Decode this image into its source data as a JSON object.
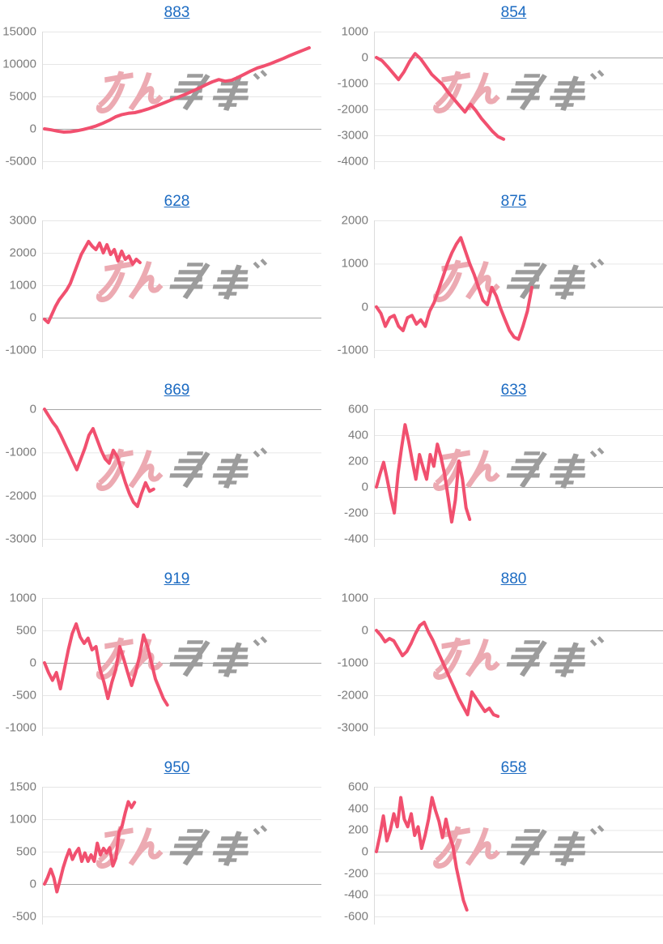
{
  "page": {
    "background": "#ffffff"
  },
  "style": {
    "line_color": "#f1506f",
    "grid_color": "#e6e6e6",
    "zero_line_color": "#a6a6a6",
    "axis_line_color": "#dcdcdc",
    "tick_label_color": "#7b7b7b",
    "title_link_color": "#1c6bc2",
    "watermark_pink": "#ecaab2",
    "watermark_gray": "#9c9c9c"
  },
  "watermark": {
    "name": "minrepo-logo",
    "text": "みんレポ"
  },
  "chart_data": [
    {
      "id": "883",
      "type": "line",
      "title": "883",
      "legend": "none",
      "grid": true,
      "yticks": [
        15000,
        10000,
        5000,
        0,
        -5000
      ],
      "ylim": [
        -5000,
        15000
      ],
      "x_end_fraction": 0.97,
      "values": [
        0,
        -150,
        -350,
        -500,
        -450,
        -300,
        -100,
        150,
        450,
        850,
        1300,
        1850,
        2200,
        2400,
        2500,
        2750,
        3050,
        3400,
        3800,
        4200,
        4600,
        5000,
        5400,
        5850,
        6300,
        6800,
        7250,
        7600,
        7350,
        7500,
        7950,
        8450,
        8950,
        9400,
        9700,
        10050,
        10450,
        10850,
        11300,
        11700,
        12100,
        12500
      ]
    },
    {
      "id": "854",
      "type": "line",
      "title": "854",
      "legend": "none",
      "grid": true,
      "yticks": [
        1000,
        0,
        -1000,
        -2000,
        -3000,
        -4000
      ],
      "ylim": [
        -4000,
        1000
      ],
      "x_end_fraction": 0.45,
      "values": [
        0,
        -120,
        -350,
        -600,
        -850,
        -550,
        -150,
        150,
        -50,
        -350,
        -650,
        -850,
        -1050,
        -1350,
        -1600,
        -1850,
        -2100,
        -1800,
        -2050,
        -2350,
        -2600,
        -2850,
        -3050,
        -3150
      ]
    },
    {
      "id": "628",
      "type": "line",
      "title": "628",
      "legend": "none",
      "grid": true,
      "yticks": [
        3000,
        2000,
        1000,
        0,
        -1000
      ],
      "ylim": [
        -1000,
        3000
      ],
      "x_end_fraction": 0.35,
      "values": [
        -50,
        -150,
        100,
        350,
        550,
        700,
        850,
        1050,
        1350,
        1650,
        1950,
        2150,
        2350,
        2200,
        2100,
        2300,
        2000,
        2250,
        1950,
        2100,
        1750,
        2050,
        1800,
        1900,
        1650,
        1800,
        1700
      ]
    },
    {
      "id": "875",
      "type": "line",
      "title": "875",
      "legend": "none",
      "grid": true,
      "yticks": [
        2000,
        1000,
        0,
        -1000
      ],
      "ylim": [
        -1000,
        2000
      ],
      "x_end_fraction": 0.55,
      "values": [
        0,
        -150,
        -450,
        -250,
        -200,
        -450,
        -550,
        -250,
        -200,
        -400,
        -300,
        -450,
        -100,
        100,
        400,
        700,
        1000,
        1250,
        1450,
        1600,
        1300,
        1000,
        750,
        450,
        150,
        50,
        450,
        250,
        -50,
        -300,
        -550,
        -700,
        -750,
        -450,
        -100,
        450
      ]
    },
    {
      "id": "869",
      "type": "line",
      "title": "869",
      "legend": "none",
      "grid": true,
      "yticks": [
        0,
        -1000,
        -2000,
        -3000
      ],
      "ylim": [
        -3000,
        0
      ],
      "x_end_fraction": 0.4,
      "values": [
        0,
        -150,
        -300,
        -420,
        -600,
        -800,
        -1000,
        -1200,
        -1400,
        -1150,
        -900,
        -600,
        -450,
        -700,
        -950,
        -1150,
        -1250,
        -950,
        -1100,
        -1400,
        -1700,
        -1950,
        -2150,
        -2250,
        -1950,
        -1700,
        -1900,
        -1850
      ]
    },
    {
      "id": "633",
      "type": "line",
      "title": "633",
      "legend": "none",
      "grid": true,
      "yticks": [
        600,
        400,
        200,
        0,
        -200,
        -400
      ],
      "ylim": [
        -400,
        600
      ],
      "x_end_fraction": 0.33,
      "values": [
        0,
        100,
        190,
        60,
        -80,
        -200,
        100,
        300,
        480,
        350,
        200,
        60,
        250,
        150,
        60,
        250,
        160,
        330,
        230,
        100,
        -80,
        -270,
        -100,
        200,
        60,
        -160,
        -250
      ]
    },
    {
      "id": "919",
      "type": "line",
      "title": "919",
      "legend": "none",
      "grid": true,
      "yticks": [
        1000,
        500,
        0,
        -500,
        -1000
      ],
      "ylim": [
        -1000,
        1000
      ],
      "x_end_fraction": 0.45,
      "values": [
        0,
        -150,
        -270,
        -150,
        -400,
        -100,
        200,
        450,
        600,
        400,
        300,
        380,
        200,
        250,
        -100,
        -300,
        -550,
        -300,
        -100,
        250,
        60,
        -150,
        -350,
        -150,
        100,
        430,
        250,
        0,
        -250,
        -400,
        -550,
        -650
      ]
    },
    {
      "id": "880",
      "type": "line",
      "title": "880",
      "legend": "none",
      "grid": true,
      "yticks": [
        1000,
        0,
        -1000,
        -2000,
        -3000
      ],
      "ylim": [
        -3000,
        1000
      ],
      "x_end_fraction": 0.43,
      "values": [
        0,
        -150,
        -350,
        -250,
        -320,
        -550,
        -780,
        -650,
        -400,
        -100,
        150,
        250,
        -50,
        -300,
        -600,
        -900,
        -1200,
        -1500,
        -1800,
        -2100,
        -2350,
        -2600,
        -1900,
        -2100,
        -2300,
        -2500,
        -2400,
        -2600,
        -2650
      ]
    },
    {
      "id": "950",
      "type": "line",
      "title": "950",
      "legend": "none",
      "grid": true,
      "yticks": [
        1500,
        1000,
        500,
        0,
        -500
      ],
      "ylim": [
        -500,
        1500
      ],
      "x_end_fraction": 0.33,
      "values": [
        0,
        100,
        230,
        100,
        -120,
        60,
        250,
        400,
        530,
        380,
        480,
        550,
        350,
        480,
        350,
        450,
        350,
        630,
        450,
        550,
        480,
        560,
        280,
        400,
        800,
        900,
        1100,
        1270,
        1180,
        1260
      ]
    },
    {
      "id": "658",
      "type": "line",
      "title": "658",
      "legend": "none",
      "grid": true,
      "yticks": [
        600,
        400,
        200,
        0,
        -200,
        -400,
        -600
      ],
      "ylim": [
        -600,
        600
      ],
      "x_end_fraction": 0.32,
      "values": [
        0,
        150,
        330,
        100,
        200,
        350,
        230,
        500,
        300,
        230,
        350,
        150,
        230,
        30,
        150,
        300,
        500,
        380,
        280,
        130,
        300,
        150,
        50,
        -150,
        -300,
        -450,
        -540
      ]
    }
  ]
}
